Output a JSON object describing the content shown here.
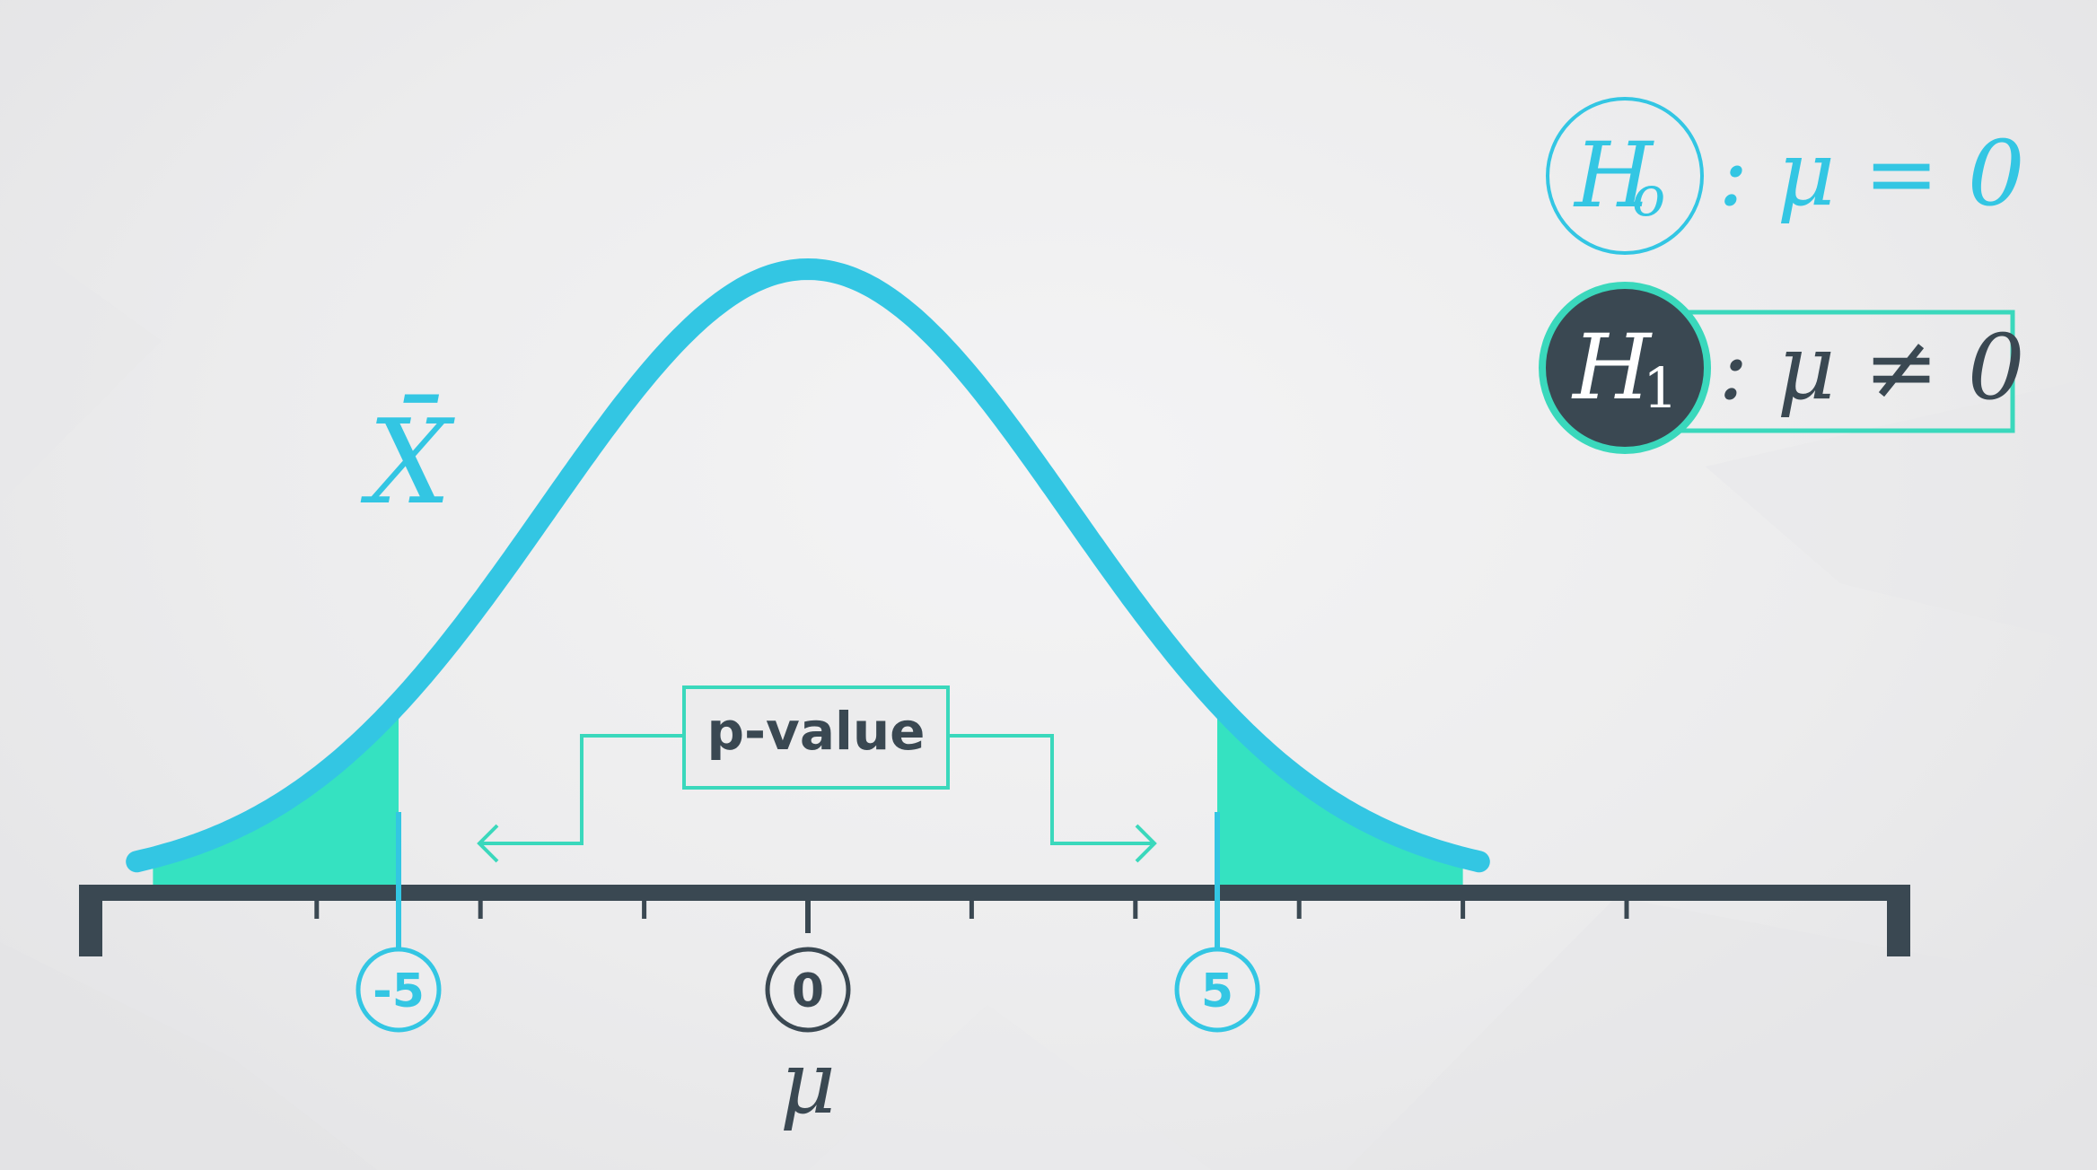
{
  "colors": {
    "curve": "#33c6e3",
    "tail_fill": "#35e2c1",
    "axis": "#3a4852",
    "h1_fill": "#3a4852",
    "h1_ring": "#3ad8bc",
    "h0_text": "#33c6e3",
    "dark_text": "#3a4852",
    "pvalue_box": "#3ad8bc",
    "bracket": "#3ad8bc",
    "background": "#ededee"
  },
  "chart_data": {
    "type": "line",
    "title": "",
    "curve_label": "X̄",
    "xlabel": "μ",
    "distribution": "normal",
    "mean": 0,
    "xlim": [
      -10.5,
      12.5
    ],
    "ticks": [
      -6,
      -4,
      -2,
      2,
      4,
      6,
      8,
      10
    ],
    "critical_values": [
      -5,
      5
    ],
    "center_value": 0,
    "shaded_tails": [
      [
        -8,
        -5
      ],
      [
        5,
        8
      ]
    ]
  },
  "labels": {
    "x_bar": "X̄",
    "mu_axis": "μ",
    "neg_crit": "-5",
    "center": "0",
    "pos_crit": "5",
    "pvalue": "p-value"
  },
  "hypotheses": {
    "h0_symbol": "H",
    "h0_sub": "o",
    "h0_statement": ": μ = 0",
    "h1_symbol": "H",
    "h1_sub": "1",
    "h1_statement": ": μ ≠ 0"
  }
}
